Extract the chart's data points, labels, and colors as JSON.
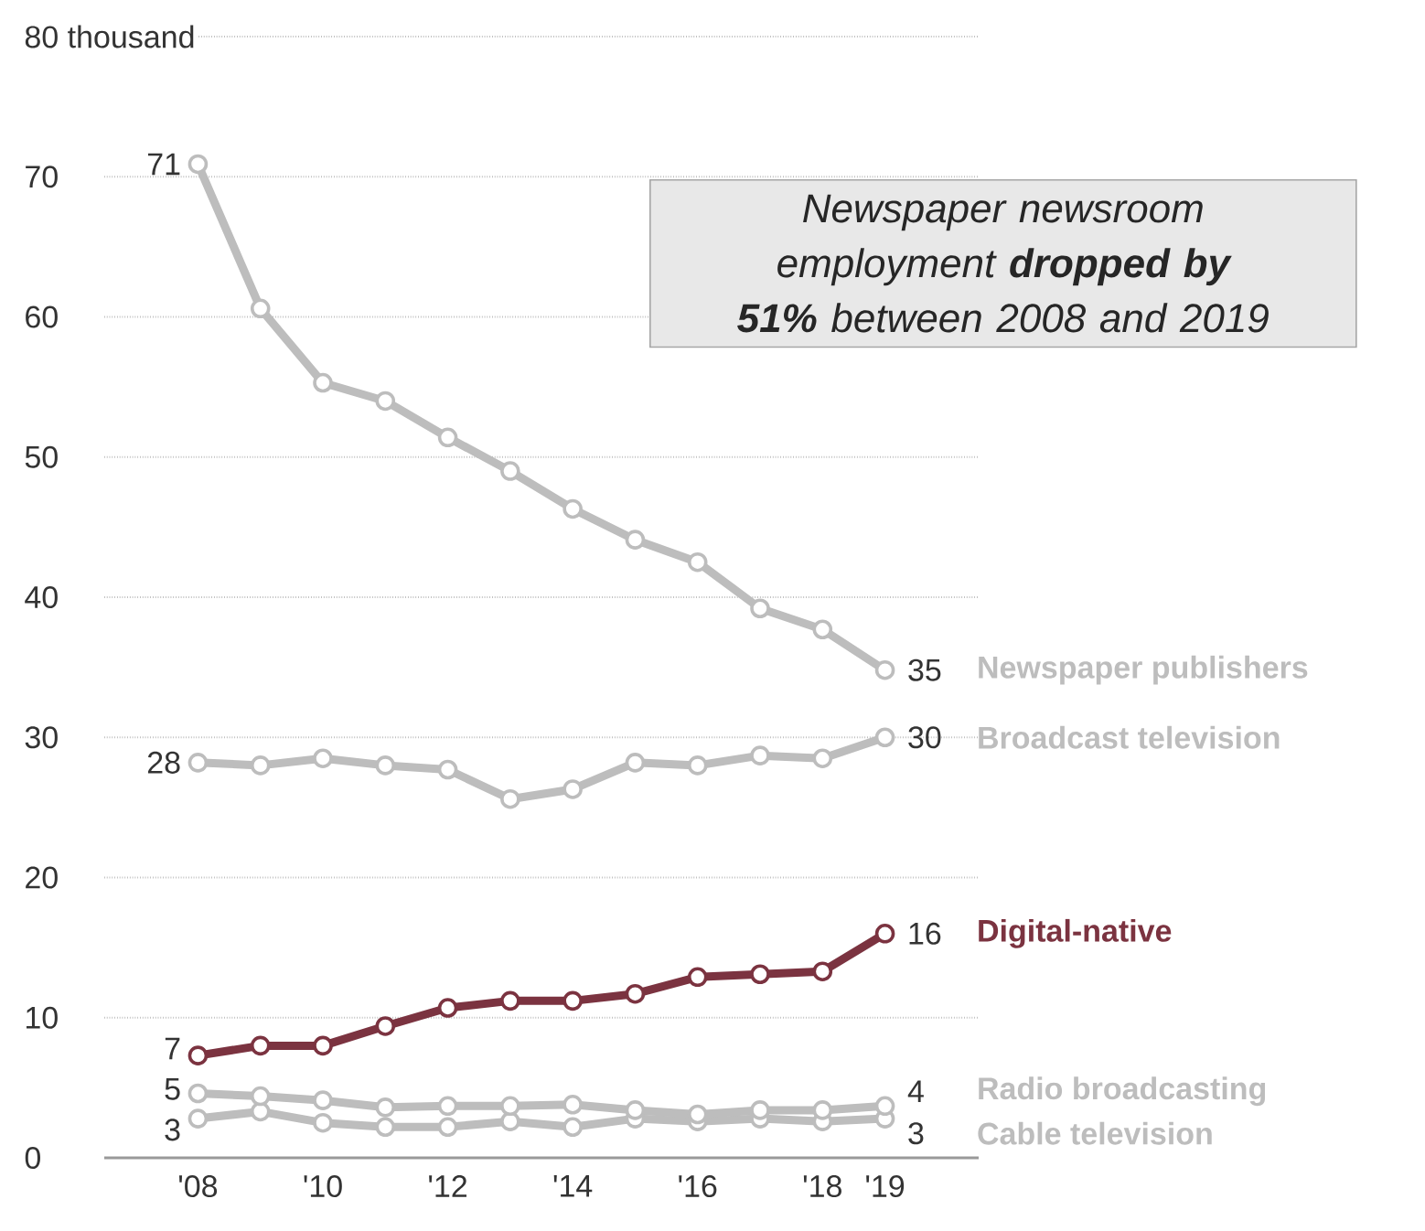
{
  "chart_data": {
    "type": "line",
    "x": [
      2008,
      2009,
      2010,
      2011,
      2012,
      2013,
      2014,
      2015,
      2016,
      2017,
      2018,
      2019
    ],
    "series": [
      {
        "name": "Newspaper publishers",
        "color": "#bdbdbd",
        "values": [
          70.9,
          60.6,
          55.3,
          54.0,
          51.4,
          49.0,
          46.3,
          44.1,
          42.5,
          39.2,
          37.7,
          34.8
        ],
        "value_labels": [
          "71",
          null,
          null,
          null,
          null,
          null,
          null,
          null,
          null,
          null,
          null,
          "35"
        ]
      },
      {
        "name": "Broadcast television",
        "color": "#bdbdbd",
        "values": [
          28.2,
          28.0,
          28.5,
          28.0,
          27.7,
          25.6,
          26.3,
          28.2,
          28.0,
          28.7,
          28.5,
          30.0
        ],
        "value_labels": [
          "28",
          null,
          null,
          null,
          null,
          null,
          null,
          null,
          null,
          null,
          null,
          "30"
        ]
      },
      {
        "name": "Digital-native",
        "color": "#7b3340",
        "values": [
          7.3,
          8.0,
          8.0,
          9.4,
          10.7,
          11.2,
          11.2,
          11.7,
          12.9,
          13.1,
          13.3,
          16.0
        ],
        "value_labels": [
          "7",
          null,
          null,
          null,
          null,
          null,
          null,
          null,
          null,
          null,
          null,
          "16"
        ]
      },
      {
        "name": "Radio broadcasting",
        "color": "#bdbdbd",
        "values": [
          4.6,
          4.4,
          4.1,
          3.6,
          3.7,
          3.7,
          3.8,
          3.4,
          3.1,
          3.4,
          3.4,
          3.7
        ],
        "value_labels": [
          "5",
          null,
          null,
          null,
          null,
          null,
          null,
          null,
          null,
          null,
          null,
          "4"
        ]
      },
      {
        "name": "Cable television",
        "color": "#bdbdbd",
        "values": [
          2.8,
          3.3,
          2.5,
          2.2,
          2.2,
          2.6,
          2.2,
          2.8,
          2.6,
          2.8,
          2.6,
          2.8
        ],
        "value_labels": [
          "3",
          null,
          null,
          null,
          null,
          null,
          null,
          null,
          null,
          null,
          null,
          "3"
        ]
      }
    ],
    "xlim": [
      2006.5,
      2020.5
    ],
    "xticks": [
      {
        "value": 2008,
        "label": "'08"
      },
      {
        "value": 2010,
        "label": "'10"
      },
      {
        "value": 2012,
        "label": "'12"
      },
      {
        "value": 2014,
        "label": "'14"
      },
      {
        "value": 2016,
        "label": "'16"
      },
      {
        "value": 2018,
        "label": "'18"
      },
      {
        "value": 2019,
        "label": "'19"
      }
    ],
    "ylim": [
      0,
      80
    ],
    "yticks": [
      0,
      10,
      20,
      30,
      40,
      50,
      60,
      70,
      {
        "value": 80,
        "label": "80 thousand"
      }
    ],
    "grid": "y",
    "marker": "circle",
    "line_style": "solid",
    "legend": false,
    "annotations": [
      "Newspaper newsroom employment **dropped by 51%** between 2008 and 2019"
    ]
  }
}
